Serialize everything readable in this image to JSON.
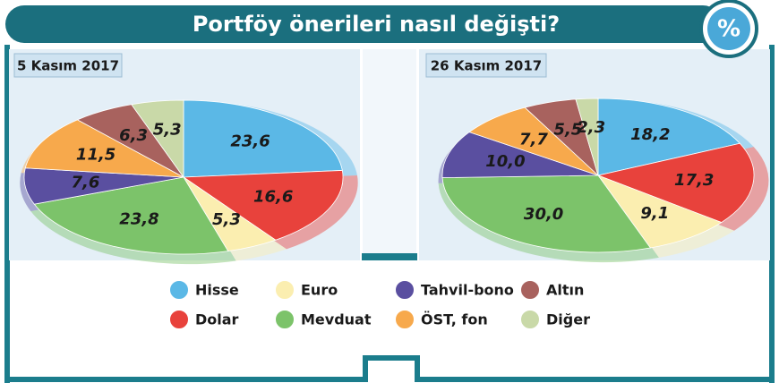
{
  "title": "Portföy önerileri nasıl değişti?",
  "badge": "%",
  "chart_data": [
    {
      "type": "pie",
      "title": "5 Kasım 2017",
      "categories": [
        "Hisse",
        "Dolar",
        "Euro",
        "Mevduat",
        "Tahvil-bono",
        "ÖST, fon",
        "Altın",
        "Diğer"
      ],
      "values": [
        23.6,
        16.6,
        5.3,
        23.8,
        7.6,
        11.5,
        6.3,
        5.3
      ],
      "value_labels": [
        "23,6",
        "16,6",
        "5,3",
        "23,8",
        "7,6",
        "11,5",
        "6,3",
        "5,3"
      ],
      "colors": [
        "#5bb8e6",
        "#e8423c",
        "#fbeeb0",
        "#7cc36a",
        "#5a4fa0",
        "#f7a94c",
        "#a8625e",
        "#c9d9a8"
      ]
    },
    {
      "type": "pie",
      "title": "26 Kasım 2017",
      "categories": [
        "Hisse",
        "Dolar",
        "Euro",
        "Mevduat",
        "Tahvil-bono",
        "ÖST, fon",
        "Altın",
        "Diğer"
      ],
      "values": [
        18.2,
        17.3,
        9.1,
        30.0,
        10.0,
        7.7,
        5.5,
        2.3
      ],
      "value_labels": [
        "18,2",
        "17,3",
        "9,1",
        "30,0",
        "10,0",
        "7,7",
        "5,5",
        "2,3"
      ],
      "colors": [
        "#5bb8e6",
        "#e8423c",
        "#fbeeb0",
        "#7cc36a",
        "#5a4fa0",
        "#f7a94c",
        "#a8625e",
        "#c9d9a8"
      ]
    }
  ]
}
